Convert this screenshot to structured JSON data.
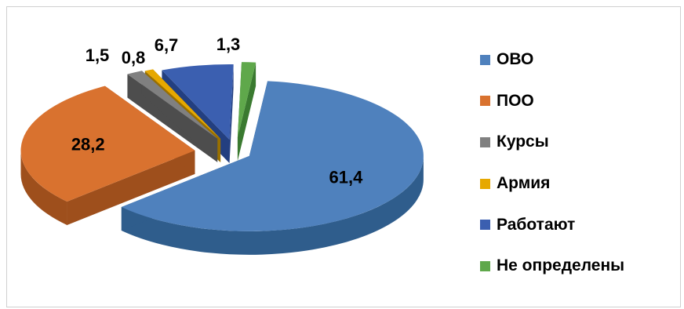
{
  "chart_data": {
    "type": "pie",
    "style": "3d-exploded",
    "categories": [
      "ОВО",
      "ПОО",
      "Курсы",
      "Армия",
      "Работают",
      "Не определены"
    ],
    "values": [
      61.4,
      28.2,
      1.5,
      0.8,
      6.7,
      1.3
    ],
    "data_labels": [
      "61,4",
      "28,2",
      "1,5",
      "0,8",
      "6,7",
      "1,3"
    ],
    "colors": [
      "#4F81BD",
      "#D9722F",
      "#808080",
      "#E6A800",
      "#3B5FB0",
      "#5FA84B"
    ],
    "side_colors": [
      "#2F5D8C",
      "#9E4F1C",
      "#4D4D4D",
      "#9A7000",
      "#233F80",
      "#3A7A30"
    ],
    "legend_position": "right"
  }
}
